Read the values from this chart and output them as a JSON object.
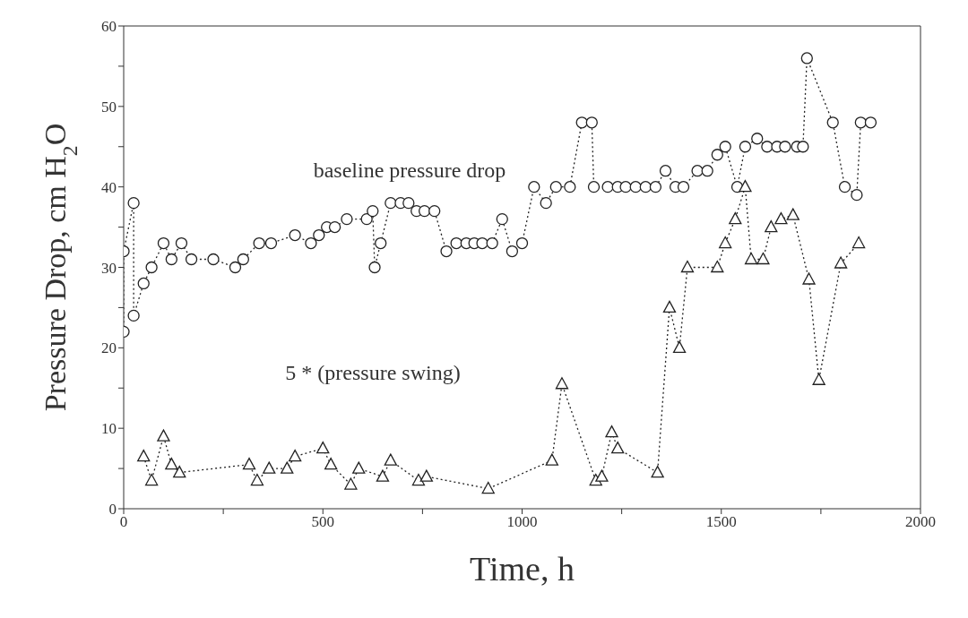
{
  "chart_data": {
    "type": "line",
    "xlabel": "Time, h",
    "ylabel": "Pressure Drop, cm H$_{2}$O",
    "xlim": [
      0,
      2000
    ],
    "ylim": [
      0,
      60
    ],
    "xticks": [
      0,
      {
        "value": 250,
        "label": null
      },
      500,
      {
        "value": 750,
        "label": null
      },
      1000,
      {
        "value": 1250,
        "label": null
      },
      1500,
      {
        "value": 1750,
        "label": null
      },
      2000
    ],
    "yticks": [
      0,
      {
        "value": 5,
        "label": null
      },
      10,
      {
        "value": 15,
        "label": null
      },
      20,
      {
        "value": 25,
        "label": null
      },
      30,
      {
        "value": 35,
        "label": null
      },
      40,
      {
        "value": 45,
        "label": null
      },
      50,
      {
        "value": 55,
        "label": null
      },
      60
    ],
    "grid": false,
    "line_style": "dotted",
    "series": [
      {
        "color": "#222222",
        "marker": "circle",
        "x": [
          0,
          0,
          25,
          25,
          50,
          70,
          100,
          120,
          145,
          170,
          225,
          280,
          300,
          340,
          370,
          430,
          470,
          490,
          510,
          530,
          560,
          610,
          625,
          630,
          645,
          670,
          695,
          715,
          735,
          755,
          780,
          810,
          835,
          860,
          880,
          900,
          925,
          950,
          975,
          1000,
          1030,
          1060,
          1085,
          1120,
          1150,
          1175,
          1180,
          1215,
          1240,
          1260,
          1285,
          1310,
          1335,
          1360,
          1385,
          1405,
          1440,
          1465,
          1490,
          1510,
          1540,
          1560,
          1590,
          1615,
          1640,
          1660,
          1690,
          1705,
          1715,
          1780,
          1810,
          1840,
          1850,
          1875
        ],
        "values": [
          22,
          32,
          38,
          24,
          28,
          30,
          33,
          31,
          33,
          31,
          31,
          30,
          31,
          33,
          33,
          34,
          33,
          34,
          35,
          35,
          36,
          36,
          37,
          30,
          33,
          38,
          38,
          38,
          37,
          37,
          37,
          32,
          33,
          33,
          33,
          33,
          33,
          36,
          32,
          33,
          40,
          38,
          40,
          40,
          48,
          48,
          40,
          40,
          40,
          40,
          40,
          40,
          40,
          42,
          40,
          40,
          42,
          42,
          44,
          45,
          40,
          45,
          46,
          45,
          45,
          45,
          45,
          45,
          56,
          48,
          40,
          39,
          48,
          48
        ]
      },
      {
        "color": "#222222",
        "marker": "triangle",
        "x": [
          50,
          70,
          100,
          120,
          140,
          315,
          335,
          365,
          410,
          430,
          500,
          520,
          570,
          590,
          650,
          670,
          740,
          760,
          915,
          1075,
          1100,
          1185,
          1200,
          1225,
          1240,
          1340,
          1370,
          1395,
          1415,
          1490,
          1510,
          1535,
          1560,
          1575,
          1605,
          1625,
          1650,
          1680,
          1720,
          1745,
          1800,
          1845
        ],
        "values": [
          6.5,
          3.5,
          9,
          5.5,
          4.5,
          5.5,
          3.5,
          5,
          5,
          6.5,
          7.5,
          5.5,
          3,
          5,
          4,
          6,
          3.5,
          4,
          2.5,
          6,
          15.5,
          3.5,
          4,
          9.5,
          7.5,
          4.5,
          25,
          20,
          30,
          30,
          33,
          36,
          40,
          31,
          31,
          35,
          36,
          36.5,
          28.5,
          16,
          30.5,
          33
        ]
      }
    ],
    "annotations": [
      "baseline pressure drop",
      "5 * (pressure swing)"
    ]
  }
}
